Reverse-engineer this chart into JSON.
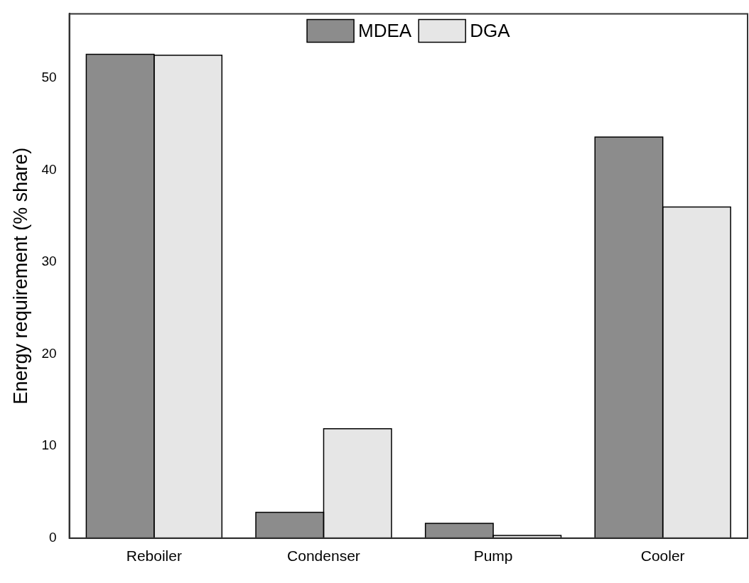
{
  "chart_data": {
    "type": "bar",
    "ylabel": "Energy requirement (% share)",
    "categories": [
      "Reboiler",
      "Condenser",
      "Pump",
      "Cooler"
    ],
    "series": [
      {
        "name": "MDEA",
        "color": "#8c8c8c",
        "values": [
          52.6,
          2.8,
          1.6,
          43.6
        ]
      },
      {
        "name": "DGA",
        "color": "#e6e6e6",
        "values": [
          52.5,
          11.9,
          0.3,
          36.0
        ]
      }
    ],
    "ylim": [
      0,
      57
    ],
    "yticks": [
      0,
      10,
      20,
      30,
      40,
      50
    ],
    "grid": false,
    "legend": "top"
  }
}
